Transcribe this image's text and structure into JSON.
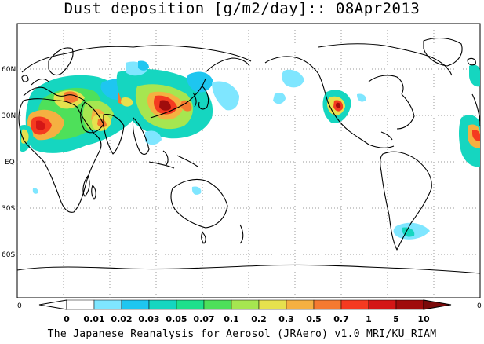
{
  "title": "Dust deposition [g/m2/day]:: 08Apr2013",
  "latitude_labels": [
    "60N",
    "30N",
    "EQ",
    "30S",
    "60S"
  ],
  "colorbar": {
    "edge_left_label": "0",
    "edge_right_label": "0",
    "labels": [
      "0",
      "0.01",
      "0.02",
      "0.03",
      "0.05",
      "0.07",
      "0.1",
      "0.2",
      "0.3",
      "0.5",
      "0.7",
      "1",
      "5",
      "10"
    ],
    "colors": [
      "#ffffff",
      "#7fe6ff",
      "#1ec6f0",
      "#15d6c0",
      "#1ee08c",
      "#4ee05a",
      "#a6e650",
      "#e6e14e",
      "#f5b041",
      "#f57a30",
      "#f53a20",
      "#d41616",
      "#a00c0c"
    ],
    "under_color": "#ffffff",
    "over_color": "#7a0a0a"
  },
  "credit": "The Japanese Reanalysis for Aerosol (JRAero) v1.0 MRI/KU_RIAM"
}
